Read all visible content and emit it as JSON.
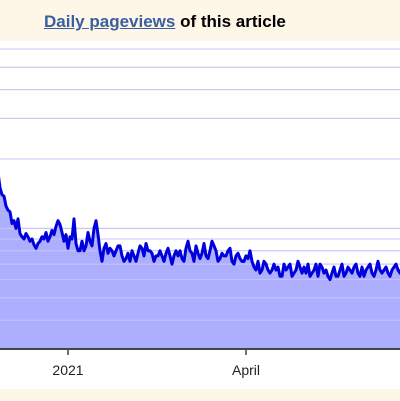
{
  "header": {
    "link_label": "Daily pageviews",
    "suffix": " of this article"
  },
  "colors": {
    "background": "#fef6e7",
    "plot_background": "#ffffff",
    "line": "#0000dd",
    "fill": "#aaaaff",
    "grid": "#dddddd",
    "axis": "#444444",
    "link": "#3a5fa0"
  },
  "chart_data": {
    "type": "area",
    "title": "Daily pageviews of this article",
    "xlabel": "",
    "ylabel": "",
    "y_scale": "log",
    "grid": true,
    "x_tick_labels": [
      "2021",
      "April"
    ],
    "x_ticks": [
      {
        "label": "2021",
        "index": 35
      },
      {
        "label": "April",
        "index": 124
      }
    ],
    "series": [
      {
        "values": [
          175,
          150,
          140,
          138,
          125,
          120,
          118,
          105,
          108,
          100,
          110,
          95,
          92,
          90,
          95,
          92,
          88,
          90,
          85,
          82,
          86,
          88,
          92,
          90,
          96,
          88,
          92,
          98,
          94,
          102,
          108,
          104,
          96,
          88,
          94,
          82,
          92,
          90,
          110,
          86,
          80,
          80,
          88,
          80,
          84,
          96,
          88,
          84,
          100,
          108,
          94,
          80,
          72,
          82,
          86,
          78,
          82,
          80,
          76,
          80,
          84,
          84,
          76,
          72,
          74,
          78,
          72,
          80,
          76,
          72,
          78,
          84,
          82,
          76,
          86,
          80,
          80,
          78,
          72,
          76,
          76,
          80,
          76,
          72,
          78,
          82,
          76,
          70,
          76,
          80,
          76,
          80,
          74,
          72,
          82,
          88,
          80,
          78,
          72,
          84,
          78,
          74,
          78,
          86,
          76,
          74,
          80,
          88,
          84,
          80,
          72,
          74,
          78,
          76,
          76,
          80,
          82,
          72,
          70,
          76,
          78,
          74,
          72,
          72,
          76,
          74,
          80,
          72,
          68,
          66,
          72,
          64,
          66,
          72,
          70,
          66,
          64,
          66,
          70,
          66,
          68,
          62,
          62,
          70,
          66,
          68,
          70,
          62,
          64,
          66,
          72,
          68,
          64,
          68,
          64,
          70,
          62,
          64,
          66,
          70,
          62,
          70,
          68,
          64,
          66,
          62,
          60,
          64,
          68,
          62,
          62,
          66,
          70,
          62,
          64,
          68,
          66,
          64,
          68,
          70,
          64,
          62,
          68,
          62,
          66,
          68,
          70,
          64,
          62,
          66,
          72,
          66,
          64,
          66,
          68,
          64,
          62,
          66,
          68,
          70,
          66,
          64,
          68
        ]
      }
    ]
  }
}
